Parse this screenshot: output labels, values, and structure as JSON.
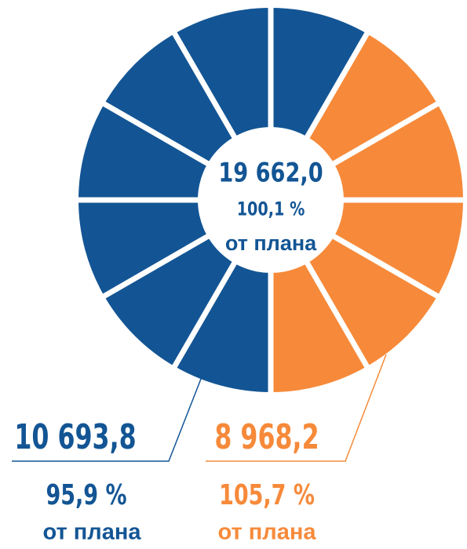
{
  "total": {
    "value": "19 662,0",
    "percent": "100,1 %",
    "note": "от плана"
  },
  "left": {
    "value": "10 693,8",
    "percent": "95,9 %",
    "note": "от плана"
  },
  "right": {
    "value": "8 968,2",
    "percent": "105,7 %",
    "note": "от плана"
  }
}
